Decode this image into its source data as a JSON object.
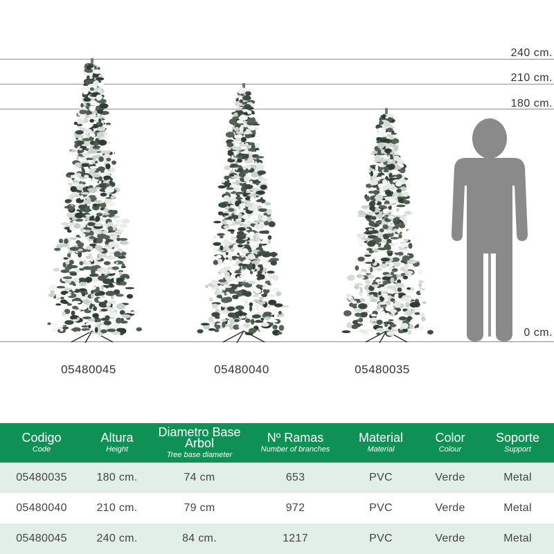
{
  "height_scale": {
    "lines": [
      {
        "value": 240,
        "label": "240 cm."
      },
      {
        "value": 210,
        "label": "210 cm."
      },
      {
        "value": 180,
        "label": "180 cm."
      },
      {
        "value": 0,
        "label": "0 cm."
      }
    ],
    "line_color": "#8c8c8c"
  },
  "trees": [
    {
      "code": "05480045",
      "height_cm": 240
    },
    {
      "code": "05480040",
      "height_cm": 210
    },
    {
      "code": "05480035",
      "height_cm": 180
    }
  ],
  "figure": {
    "icon": "person-silhouette-icon",
    "color": "#8a8a8a"
  },
  "table": {
    "header_color": "#0f9156",
    "stripe_color": "#e1efe7",
    "headers": [
      {
        "label": "Codigo",
        "sublabel": "Code"
      },
      {
        "label": "Altura",
        "sublabel": "Height"
      },
      {
        "label": "Diametro Base Arbol",
        "sublabel": "Tree base diameter"
      },
      {
        "label": "Nº Ramas",
        "sublabel": "Number of branches"
      },
      {
        "label": "Material",
        "sublabel": "Material"
      },
      {
        "label": "Color",
        "sublabel": "Colour"
      },
      {
        "label": "Soporte",
        "sublabel": "Support"
      }
    ],
    "rows": [
      [
        "05480035",
        "180 cm.",
        "74 cm",
        "653",
        "PVC",
        "Verde",
        "Metal"
      ],
      [
        "05480040",
        "210 cm.",
        "79 cm",
        "972",
        "PVC",
        "Verde",
        "Metal"
      ],
      [
        "05480045",
        "240 cm.",
        "84 cm.",
        "1217",
        "PVC",
        "Verde",
        "Metal"
      ]
    ]
  }
}
